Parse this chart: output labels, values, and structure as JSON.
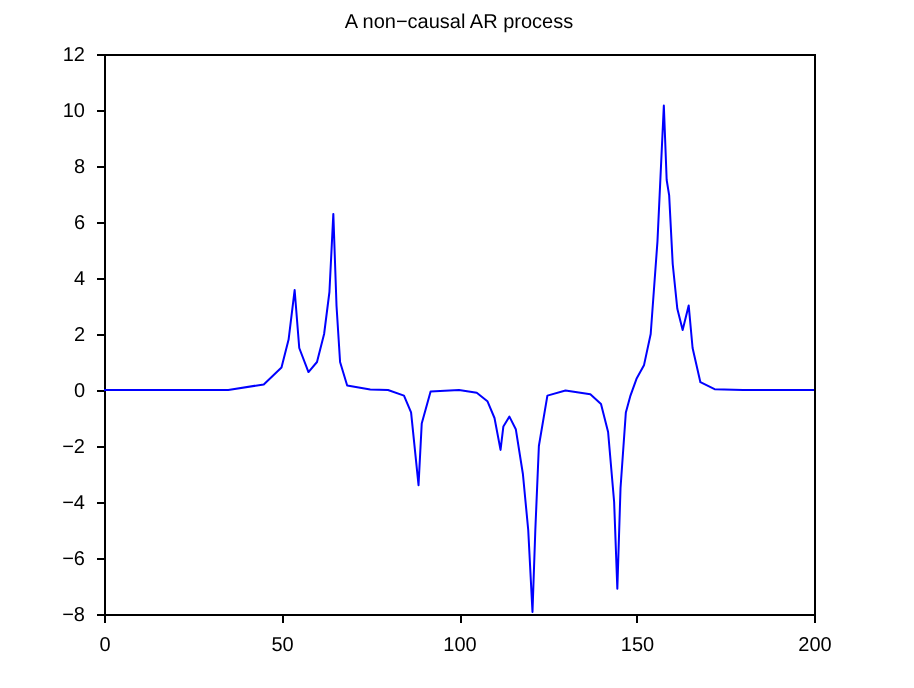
{
  "chart_data": {
    "type": "line",
    "title": "A non−causal AR process",
    "xlim": [
      0,
      200
    ],
    "xticks": [
      0,
      50,
      100,
      150,
      200
    ],
    "ylim": [
      -8,
      12
    ],
    "yticks": [
      -8,
      -6,
      -4,
      -2,
      0,
      2,
      4,
      6,
      8,
      10,
      12
    ],
    "grid": false,
    "series": [
      {
        "color": "#0000ff",
        "x": [
          0,
          35,
          45,
          50,
          52,
          53.7,
          55,
          57.6,
          60,
          62,
          63.5,
          64.6,
          65.5,
          66.5,
          68.5,
          75,
          80,
          84.5,
          86.5,
          88.6,
          89.5,
          92,
          100,
          105,
          108,
          110,
          111.7,
          112.5,
          114.2,
          116,
          118,
          119.5,
          120.7,
          121.5,
          122.5,
          124.9,
          130,
          137,
          140,
          142,
          143.7,
          144.6,
          145.5,
          147,
          148.3,
          150,
          152.1,
          154,
          155.9,
          157.7,
          158.5,
          159.2,
          160.2,
          161.5,
          163,
          164.7,
          165.8,
          168,
          172,
          180,
          200
        ],
        "values": [
          0,
          0,
          0.2,
          0.8,
          1.8,
          3.57,
          1.5,
          0.64,
          1.0,
          2.0,
          3.5,
          6.29,
          3.0,
          1.0,
          0.16,
          0.02,
          0,
          -0.2,
          -0.8,
          -3.4,
          -1.2,
          -0.05,
          0,
          -0.1,
          -0.4,
          -1.0,
          -2.14,
          -1.3,
          -0.95,
          -1.4,
          -3,
          -5,
          -7.93,
          -5,
          -2,
          -0.2,
          -0.02,
          -0.15,
          -0.5,
          -1.5,
          -4,
          -7.1,
          -3.5,
          -0.8,
          -0.2,
          0.4,
          0.88,
          2.0,
          5.3,
          10.16,
          7.5,
          6.95,
          4.5,
          2.9,
          2.14,
          3.02,
          1.5,
          0.28,
          0.03,
          0,
          0
        ]
      }
    ]
  }
}
